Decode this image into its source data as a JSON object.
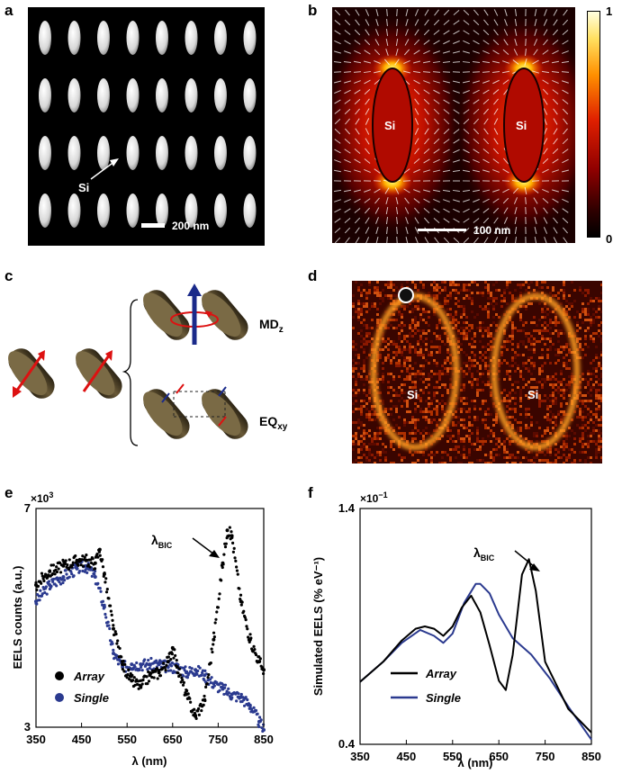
{
  "panels": {
    "a": {
      "label": "a",
      "si_label": "Si",
      "scalebar_label": "200 nm",
      "colors": {
        "background": "#000000",
        "particle": "#e6e6e6"
      }
    },
    "b": {
      "label": "b",
      "si_labels": [
        "Si",
        "Si"
      ],
      "scalebar_label": "100 nm",
      "colorbar": {
        "max_label": "1",
        "min_label": "0"
      },
      "colors": {
        "hot": "#ff3300",
        "dark": "#200000"
      }
    },
    "c": {
      "label": "c",
      "mode_labels": {
        "md_main": "MD",
        "md_sub": "z",
        "eq_main": "EQ",
        "eq_sub": "xy"
      },
      "colors": {
        "particle": "#5a4a2e",
        "dipole": "#dd1111",
        "moment": "#1a2a8a"
      }
    },
    "d": {
      "label": "d",
      "si_labels": [
        "Si",
        "Si"
      ]
    },
    "e": {
      "label": "e",
      "multiplier": "×10",
      "multiplier_exp": "3",
      "annotation_main": "λ",
      "annotation_sub": "BIC",
      "legend": [
        "Array",
        "Single"
      ]
    },
    "f": {
      "label": "f",
      "multiplier": "×10",
      "multiplier_exp": "−1",
      "annotation_main": "λ",
      "annotation_sub": "BIC",
      "legend": [
        "Array",
        "Single"
      ]
    }
  },
  "chart_data": [
    {
      "type": "scatter",
      "xlabel": "λ (nm)",
      "ylabel": "EELS counts (a.u.)",
      "xlim": [
        350,
        850
      ],
      "ylim": [
        3,
        7
      ],
      "xticks": [
        "350",
        "450",
        "550",
        "650",
        "750",
        "850"
      ],
      "yticks": [
        "3",
        "7"
      ],
      "series": [
        {
          "name": "Array",
          "color": "#000000",
          "x": [
            350,
            380,
            410,
            440,
            460,
            480,
            490,
            500,
            520,
            540,
            560,
            580,
            600,
            620,
            640,
            650,
            660,
            680,
            700,
            720,
            740,
            760,
            770,
            780,
            800,
            820,
            840,
            850
          ],
          "y": [
            5.6,
            5.85,
            5.95,
            6.05,
            6.05,
            6.0,
            6.25,
            5.8,
            4.8,
            4.15,
            3.85,
            3.75,
            3.95,
            4.0,
            4.2,
            4.45,
            4.1,
            3.6,
            3.2,
            3.5,
            4.6,
            6.0,
            6.6,
            6.5,
            5.3,
            4.6,
            4.2,
            4.05
          ]
        },
        {
          "name": "Single",
          "color": "#2b3a8f",
          "x": [
            350,
            380,
            410,
            440,
            460,
            480,
            500,
            520,
            540,
            560,
            580,
            600,
            620,
            640,
            660,
            680,
            700,
            720,
            740,
            760,
            780,
            800,
            820,
            840,
            850
          ],
          "y": [
            5.3,
            5.6,
            5.75,
            5.9,
            5.95,
            5.75,
            5.2,
            4.35,
            4.1,
            4.15,
            4.15,
            4.15,
            4.15,
            4.1,
            4.1,
            4.0,
            4.05,
            3.95,
            3.8,
            3.7,
            3.6,
            3.55,
            3.4,
            3.1,
            2.95
          ]
        }
      ]
    },
    {
      "type": "line",
      "xlabel": "λ (nm)",
      "ylabel": "Simulated EELS (% eV⁻¹)",
      "xlim": [
        350,
        850
      ],
      "ylim": [
        0.4,
        1.4
      ],
      "xticks": [
        "350",
        "450",
        "550",
        "650",
        "750",
        "850"
      ],
      "yticks": [
        "0.4",
        "1.4"
      ],
      "series": [
        {
          "name": "Array",
          "color": "#000000",
          "x": [
            350,
            400,
            440,
            470,
            490,
            510,
            530,
            550,
            570,
            590,
            610,
            630,
            650,
            665,
            680,
            700,
            715,
            730,
            750,
            800,
            850
          ],
          "y": [
            0.665,
            0.75,
            0.84,
            0.89,
            0.9,
            0.89,
            0.86,
            0.9,
            0.98,
            1.03,
            0.96,
            0.82,
            0.67,
            0.63,
            0.78,
            1.12,
            1.185,
            1.05,
            0.75,
            0.55,
            0.45
          ]
        },
        {
          "name": "Single",
          "color": "#2b3a8f",
          "x": [
            350,
            400,
            440,
            480,
            510,
            530,
            550,
            575,
            600,
            610,
            630,
            650,
            680,
            720,
            760,
            800,
            850
          ],
          "y": [
            0.665,
            0.75,
            0.83,
            0.885,
            0.86,
            0.83,
            0.87,
            1.0,
            1.08,
            1.08,
            1.04,
            0.95,
            0.85,
            0.78,
            0.68,
            0.56,
            0.42
          ]
        }
      ]
    }
  ]
}
